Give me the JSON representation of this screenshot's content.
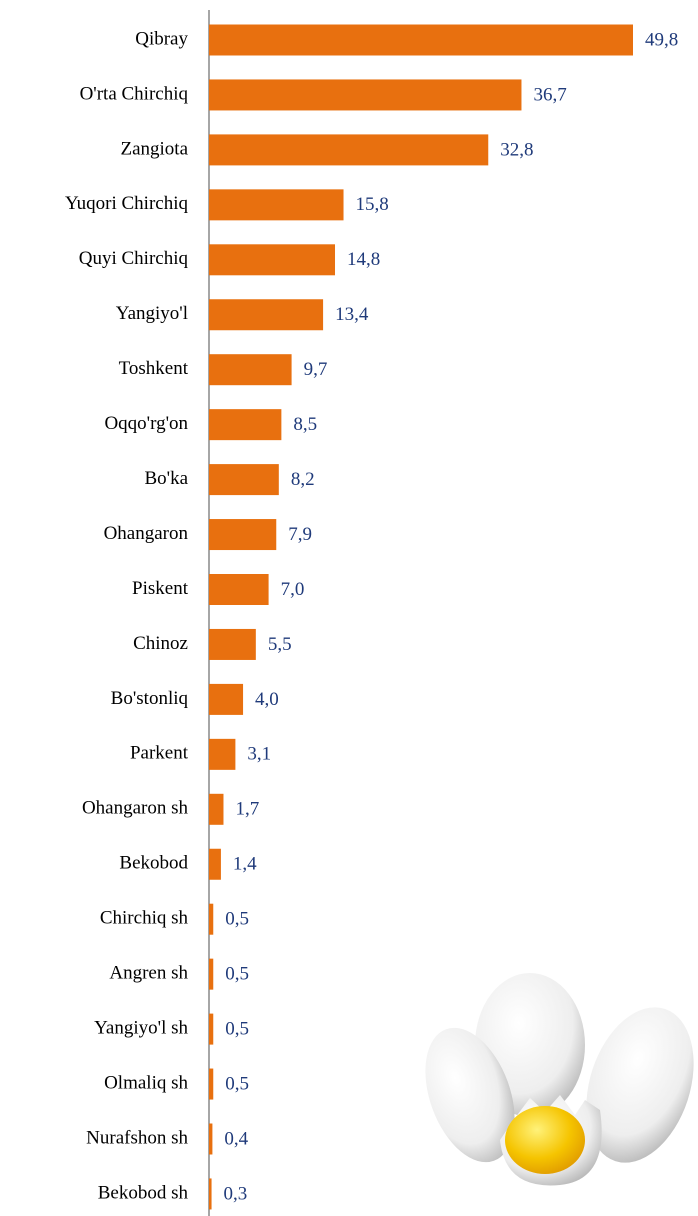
{
  "chart_data": {
    "type": "bar",
    "orientation": "horizontal",
    "color": "#e8700f",
    "categories": [
      "Qibray",
      "O'rta Chirchiq",
      "Zangiota",
      "Yuqori Chirchiq",
      "Quyi Chirchiq",
      "Yangiyo'l",
      "Toshkent",
      "Oqqo'rg'on",
      "Bo'ka",
      "Ohangaron",
      "Piskent",
      "Chinoz",
      "Bo'stonliq",
      "Parkent",
      "Ohangaron sh",
      "Bekobod",
      "Chirchiq sh",
      "Angren sh",
      "Yangiyo'l sh",
      "Olmaliq sh",
      "Nurafshon sh",
      "Bekobod sh"
    ],
    "values": [
      49.8,
      36.7,
      32.8,
      15.8,
      14.8,
      13.4,
      9.7,
      8.5,
      8.2,
      7.9,
      7.0,
      5.5,
      4.0,
      3.1,
      1.7,
      1.4,
      0.5,
      0.5,
      0.5,
      0.5,
      0.4,
      0.3
    ],
    "value_labels": [
      "49,8",
      "36,7",
      "32,8",
      "15,8",
      "14,8",
      "13,4",
      "9,7",
      "8,5",
      "8,2",
      "7,9",
      "7,0",
      "5,5",
      "4,0",
      "3,1",
      "1,7",
      "1,4",
      "0,5",
      "0,5",
      "0,5",
      "0,5",
      "0,4",
      "0,3"
    ]
  }
}
